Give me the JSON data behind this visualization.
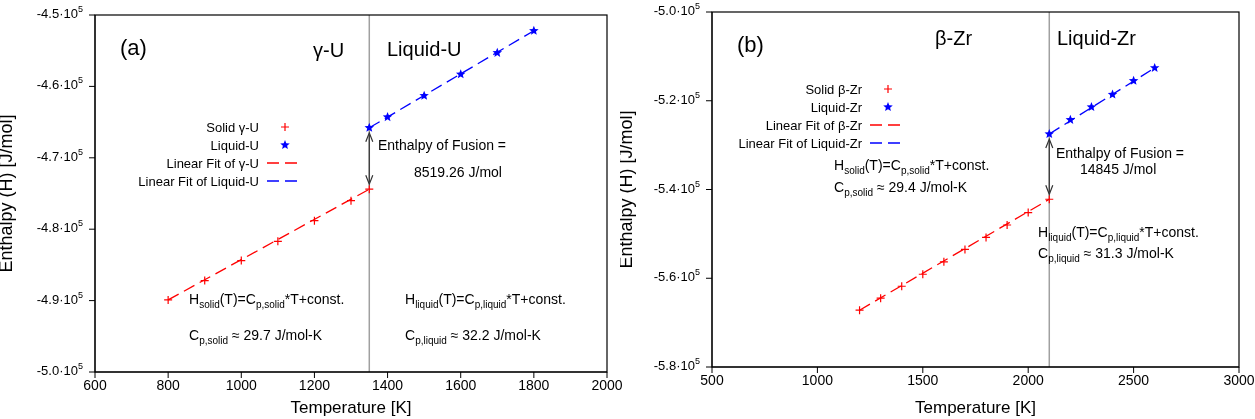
{
  "chart_data": [
    {
      "type": "scatter",
      "title": "(a)",
      "xlabel": "Temperature [K]",
      "ylabel": "Enthalpy (H) [J/mol]",
      "xlim": [
        600,
        2000
      ],
      "xticks": [
        600,
        800,
        1000,
        1200,
        1400,
        1600,
        1800,
        2000
      ],
      "ylim": [
        -500000,
        -450000
      ],
      "yticks": [
        {
          "value": -500000,
          "label": "-5.0·10$^{5}$"
        },
        {
          "value": -490000,
          "label": "-4.9·10$^{5}$"
        },
        {
          "value": -480000,
          "label": "-4.8·10$^{5}$"
        },
        {
          "value": -470000,
          "label": "-4.7·10$^{5}$"
        },
        {
          "value": -460000,
          "label": "-4.6·10$^{5}$"
        },
        {
          "value": -450000,
          "label": "-4.5·10$^{5}$"
        }
      ],
      "legend": "left",
      "series": [
        {
          "name": "Solid γ-U",
          "marker": "cross",
          "color": "#ff0000",
          "x": [
            800,
            900,
            1000,
            1100,
            1200,
            1300,
            1350
          ],
          "values": [
            -489900,
            -487200,
            -484400,
            -481700,
            -478800,
            -476000,
            -474400
          ]
        },
        {
          "name": "Liquid-U",
          "marker": "star",
          "color": "#0000ff",
          "x": [
            1350,
            1400,
            1500,
            1600,
            1700,
            1800
          ],
          "values": [
            -465800,
            -464300,
            -461300,
            -458300,
            -455300,
            -452200
          ]
        },
        {
          "name": "Linear Fit of γ-U",
          "type": "line",
          "line_style": "dashed",
          "color": "#ff0000",
          "x": [
            800,
            1350
          ],
          "values": [
            -489900,
            -474400
          ]
        },
        {
          "name": "Linear Fit of Liquid-U",
          "type": "line",
          "line_style": "dashed",
          "color": "#0000ff",
          "x": [
            1350,
            1800
          ],
          "values": [
            -465800,
            -452200
          ]
        }
      ],
      "ref_lines": [
        {
          "axis": "x",
          "value": 1350,
          "color": "#a0a0a0"
        }
      ],
      "annotations": [
        "γ-U",
        "Liquid-U",
        {
          "text": "Enthalpy of Fusion =",
          "x": 1350,
          "y": -470100
        },
        "8519.26 J/mol",
        "H$_{solid}$(T)=C$_{p,solid}$*T+const.",
        "C$_{p,solid}$ ≈ 29.7 J/mol-K",
        "H$_{liquid}$(T)=C$_{p,liquid}$*T+const.",
        "C$_{p,liquid}$ ≈ 32.2 J/mol-K"
      ]
    },
    {
      "type": "scatter",
      "title": "(b)",
      "xlabel": "Temperature [K]",
      "ylabel": "Enthalpy (H) [J/mol]",
      "xlim": [
        500,
        3000
      ],
      "xticks": [
        500,
        1000,
        1500,
        2000,
        2500,
        3000
      ],
      "ylim": [
        -580000,
        -500000
      ],
      "yticks": [
        {
          "value": -580000,
          "label": "-5.8·10$^{5}$"
        },
        {
          "value": -560000,
          "label": "-5.6·10$^{5}$"
        },
        {
          "value": -540000,
          "label": "-5.4·10$^{5}$"
        },
        {
          "value": -520000,
          "label": "-5.2·10$^{5}$"
        },
        {
          "value": -500000,
          "label": "-5.0·10$^{5}$"
        }
      ],
      "legend": "top left",
      "series": [
        {
          "name": "Solid β-Zr",
          "marker": "cross",
          "color": "#ff0000",
          "x": [
            1200,
            1300,
            1400,
            1500,
            1600,
            1700,
            1800,
            1900,
            2000,
            2100
          ],
          "values": [
            -567200,
            -564500,
            -561800,
            -559100,
            -556300,
            -553500,
            -550800,
            -548000,
            -545200,
            -542200
          ]
        },
        {
          "name": "Liquid-Zr",
          "marker": "star",
          "color": "#0000ff",
          "x": [
            2100,
            2200,
            2300,
            2400,
            2500,
            2600
          ],
          "values": [
            -527500,
            -524300,
            -521400,
            -518600,
            -515500,
            -512600
          ]
        },
        {
          "name": "Linear Fit of β-Zr",
          "type": "line",
          "line_style": "dashed",
          "color": "#ff0000",
          "x": [
            1200,
            2100
          ],
          "values": [
            -567200,
            -542200
          ]
        },
        {
          "name": "Linear Fit of Liquid-Zr",
          "type": "line",
          "line_style": "dashed",
          "color": "#0000ff",
          "x": [
            2100,
            2600
          ],
          "values": [
            -527500,
            -512600
          ]
        }
      ],
      "ref_lines": [
        {
          "axis": "x",
          "value": 2100,
          "color": "#a0a0a0"
        }
      ],
      "annotations": [
        "β-Zr",
        "Liquid-Zr",
        {
          "text": "Enthalpy of Fusion =",
          "x": 2100,
          "y": -534850
        },
        "14845 J/mol",
        "H$_{solid}$(T)=C$_{p,solid}$*T+const.",
        "C$_{p,solid}$ ≈ 29.4 J/mol-K",
        "H$_{liquid}$(T)=C$_{p,liquid}$*T+const.",
        "C$_{p,liquid}$ ≈ 31.3 J/mol-K"
      ]
    }
  ]
}
